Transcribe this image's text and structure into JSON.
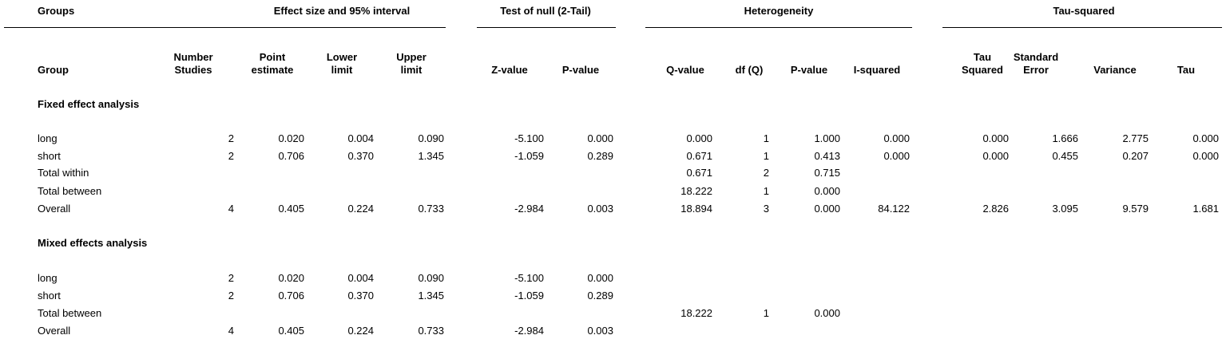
{
  "group_headers": [
    "Groups",
    "Effect size and 95% interval",
    "Test of null (2-Tail)",
    "Heterogeneity",
    "Tau-squared"
  ],
  "columns": [
    [
      "Group"
    ],
    [
      "Number",
      "Studies"
    ],
    [
      "Point",
      "estimate"
    ],
    [
      "Lower",
      "limit"
    ],
    [
      "Upper",
      "limit"
    ],
    [
      "Z-value"
    ],
    [
      "P-value"
    ],
    [
      "Q-value"
    ],
    [
      "df (Q)"
    ],
    [
      "P-value"
    ],
    [
      "I-squared"
    ],
    [
      "Tau",
      "Squared"
    ],
    [
      "Standard",
      "Error"
    ],
    [
      "Variance"
    ],
    [
      "Tau"
    ]
  ],
  "sections": [
    {
      "title": "Fixed effect analysis",
      "rows": [
        {
          "label": "long",
          "cells": [
            "2",
            "0.020",
            "0.004",
            "0.090",
            "-5.100",
            "0.000",
            "0.000",
            "1",
            "1.000",
            "0.000",
            "0.000",
            "1.666",
            "2.775",
            "0.000"
          ]
        },
        {
          "label": "short",
          "cells": [
            "2",
            "0.706",
            "0.370",
            "1.345",
            "-1.059",
            "0.289",
            "0.671",
            "1",
            "0.413",
            "0.000",
            "0.000",
            "0.455",
            "0.207",
            "0.000"
          ]
        },
        {
          "label": "Total within",
          "cells": [
            null,
            null,
            null,
            null,
            null,
            null,
            "0.671",
            "2",
            "0.715",
            null,
            null,
            null,
            null,
            null
          ]
        },
        {
          "label": "Total between",
          "cells": [
            null,
            null,
            null,
            null,
            null,
            null,
            "18.222",
            "1",
            "0.000",
            null,
            null,
            null,
            null,
            null
          ]
        },
        {
          "label": "Overall",
          "cells": [
            "4",
            "0.405",
            "0.224",
            "0.733",
            "-2.984",
            "0.003",
            "18.894",
            "3",
            "0.000",
            "84.122",
            "2.826",
            "3.095",
            "9.579",
            "1.681"
          ]
        }
      ]
    },
    {
      "title": "Mixed effects analysis",
      "rows": [
        {
          "label": "long",
          "cells": [
            "2",
            "0.020",
            "0.004",
            "0.090",
            "-5.100",
            "0.000",
            null,
            null,
            null,
            null,
            null,
            null,
            null,
            null
          ]
        },
        {
          "label": "short",
          "cells": [
            "2",
            "0.706",
            "0.370",
            "1.345",
            "-1.059",
            "0.289",
            null,
            null,
            null,
            null,
            null,
            null,
            null,
            null
          ]
        },
        {
          "label": "Total between",
          "cells": [
            null,
            null,
            null,
            null,
            null,
            null,
            "18.222",
            "1",
            "0.000",
            null,
            null,
            null,
            null,
            null
          ]
        },
        {
          "label": "Overall",
          "cells": [
            "4",
            "0.405",
            "0.224",
            "0.733",
            "-2.984",
            "0.003",
            null,
            null,
            null,
            null,
            null,
            null,
            null,
            null
          ]
        }
      ]
    }
  ]
}
